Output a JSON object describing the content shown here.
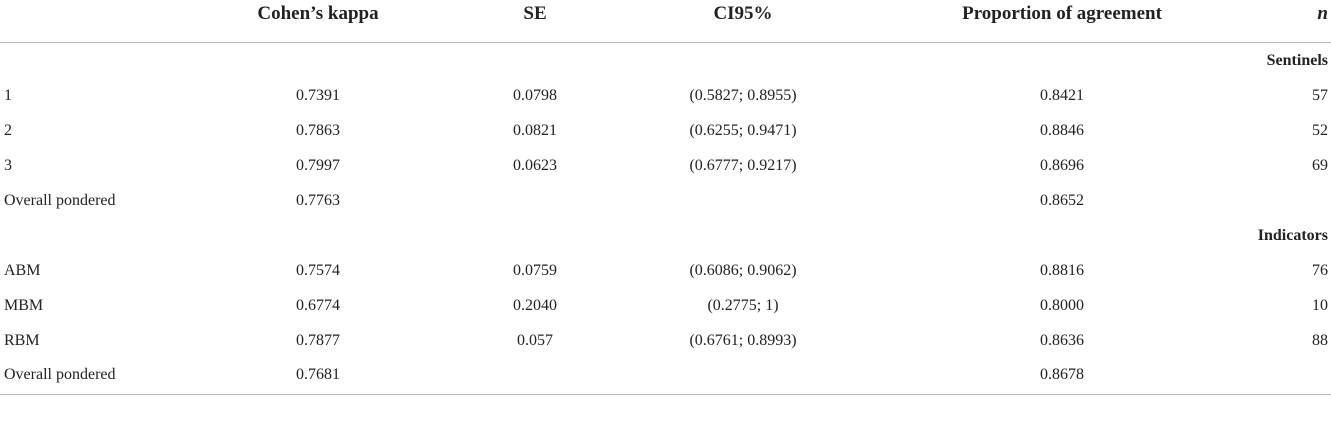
{
  "table": {
    "columns": [
      "Cohen’s kappa",
      "SE",
      "CI95%",
      "Proportion of agreement",
      "n"
    ],
    "sections": [
      {
        "title": "Sentinels",
        "rows": [
          [
            "1",
            "0.7391",
            "0.0798",
            "(0.5827; 0.8955)",
            "0.8421",
            "57"
          ],
          [
            "2",
            "0.7863",
            "0.0821",
            "(0.6255; 0.9471)",
            "0.8846",
            "52"
          ],
          [
            "3",
            "0.7997",
            "0.0623",
            "(0.6777; 0.9217)",
            "0.8696",
            "69"
          ],
          [
            "Overall pondered",
            "0.7763",
            null,
            null,
            "0.8652",
            null
          ]
        ]
      },
      {
        "title": "Indicators",
        "rows": [
          [
            "ABM",
            "0.7574",
            "0.0759",
            "(0.6086; 0.9062)",
            "0.8816",
            "76"
          ],
          [
            "MBM",
            "0.6774",
            "0.2040",
            "(0.2775; 1)",
            "0.8000",
            "10"
          ],
          [
            "RBM",
            "0.7877",
            "0.057",
            "(0.6761; 0.8993)",
            "0.8636",
            "88"
          ],
          [
            "Overall pondered",
            "0.7681",
            null,
            null,
            "0.8678",
            null
          ]
        ]
      }
    ]
  }
}
